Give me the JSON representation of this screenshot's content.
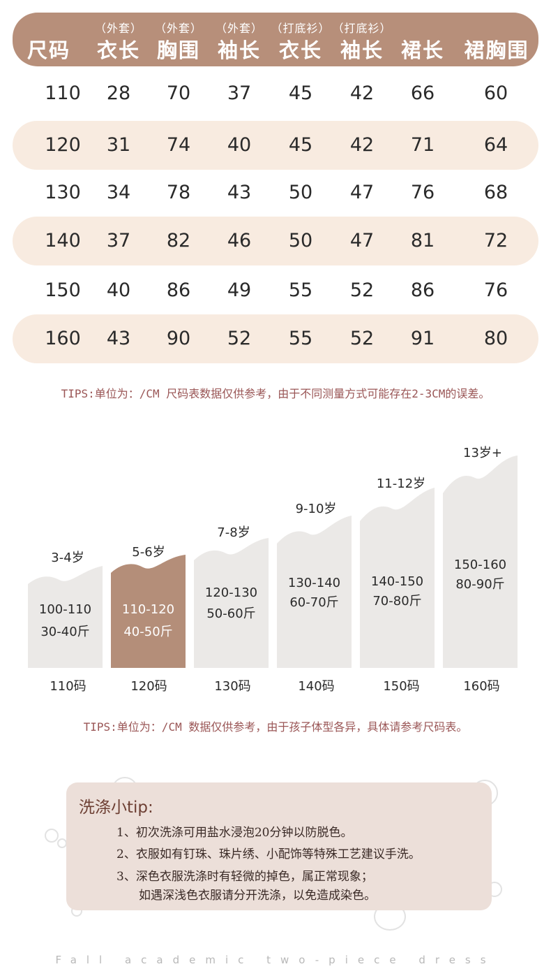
{
  "size_table": {
    "headers": [
      {
        "sub": "",
        "main": "尺码"
      },
      {
        "sub": "（外套）",
        "main": "衣长"
      },
      {
        "sub": "（外套）",
        "main": "胸围"
      },
      {
        "sub": "（外套）",
        "main": "袖长"
      },
      {
        "sub": "（打底衫）",
        "main": "衣长"
      },
      {
        "sub": "（打底衫）",
        "main": "袖长"
      },
      {
        "sub": "",
        "main": "裙长"
      },
      {
        "sub": "",
        "main": "裙胸围"
      }
    ],
    "rows": [
      [
        "110",
        "28",
        "70",
        "37",
        "45",
        "42",
        "66",
        "60"
      ],
      [
        "120",
        "31",
        "74",
        "40",
        "45",
        "42",
        "71",
        "64"
      ],
      [
        "130",
        "34",
        "78",
        "43",
        "50",
        "47",
        "76",
        "68"
      ],
      [
        "140",
        "37",
        "82",
        "46",
        "50",
        "47",
        "81",
        "72"
      ],
      [
        "150",
        "40",
        "86",
        "49",
        "55",
        "52",
        "86",
        "76"
      ],
      [
        "160",
        "43",
        "90",
        "52",
        "55",
        "52",
        "91",
        "80"
      ]
    ],
    "tips": "TIPS:单位为：/CM 尺码表数据仅供参考，由于不同测量方式可能存在2-3CM的误差。"
  },
  "age_chart": {
    "bars": [
      {
        "age": "3-4岁",
        "height": "100-110",
        "weight": "30-40斤",
        "size": "110码",
        "highlighted": false
      },
      {
        "age": "5-6岁",
        "height": "110-120",
        "weight": "40-50斤",
        "size": "120码",
        "highlighted": true
      },
      {
        "age": "7-8岁",
        "height": "120-130",
        "weight": "50-60斤",
        "size": "130码",
        "highlighted": false
      },
      {
        "age": "9-10岁",
        "height": "130-140",
        "weight": "60-70斤",
        "size": "140码",
        "highlighted": false
      },
      {
        "age": "11-12岁",
        "height": "140-150",
        "weight": "70-80斤",
        "size": "150码",
        "highlighted": false
      },
      {
        "age": "13岁+",
        "height": "150-160",
        "weight": "80-90斤",
        "size": "160码",
        "highlighted": false
      }
    ],
    "bar_color": "#ebe9e7",
    "highlight_color": "#b48e79",
    "tips": "TIPS:单位为：/CM 数据仅供参考，由于孩子体型各异，具体请参考尺码表。"
  },
  "wash": {
    "title": "洗涤小tip:",
    "lines": [
      "1、初次洗涤可用盐水浸泡20分钟以防脱色。",
      "2、衣服如有钉珠、珠片绣、小配饰等特殊工艺建议手洗。",
      "3、深色衣服洗涤时有轻微的掉色，属正常现象；",
      "如遇深浅色衣服请分开洗涤，以免造成染色。"
    ]
  },
  "footer": "Fall academic two-piece dress"
}
